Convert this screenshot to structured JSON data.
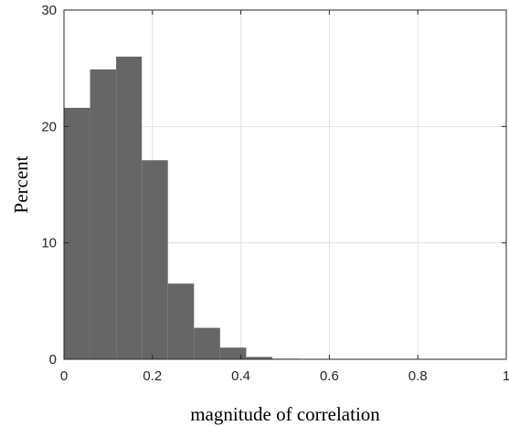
{
  "chart_data": {
    "type": "bar",
    "title": "",
    "xlabel": "magnitude of correlation",
    "ylabel": "Percent",
    "xlim": [
      0,
      1
    ],
    "ylim": [
      0,
      30
    ],
    "xticks": [
      0,
      0.2,
      0.4,
      0.6,
      0.8,
      1
    ],
    "xtick_labels": [
      "0",
      "0.2",
      "0.4",
      "0.6",
      "0.8",
      "1"
    ],
    "yticks": [
      0,
      10,
      20,
      30
    ],
    "ytick_labels": [
      "0",
      "10",
      "20",
      "30"
    ],
    "grid": true,
    "bin_edges": [
      0,
      0.059,
      0.118,
      0.176,
      0.235,
      0.294,
      0.353,
      0.412,
      0.471,
      0.529
    ],
    "values": [
      21.6,
      24.9,
      26.0,
      17.1,
      6.5,
      2.7,
      1.0,
      0.2,
      0.05
    ],
    "bar_color": "#666666"
  }
}
